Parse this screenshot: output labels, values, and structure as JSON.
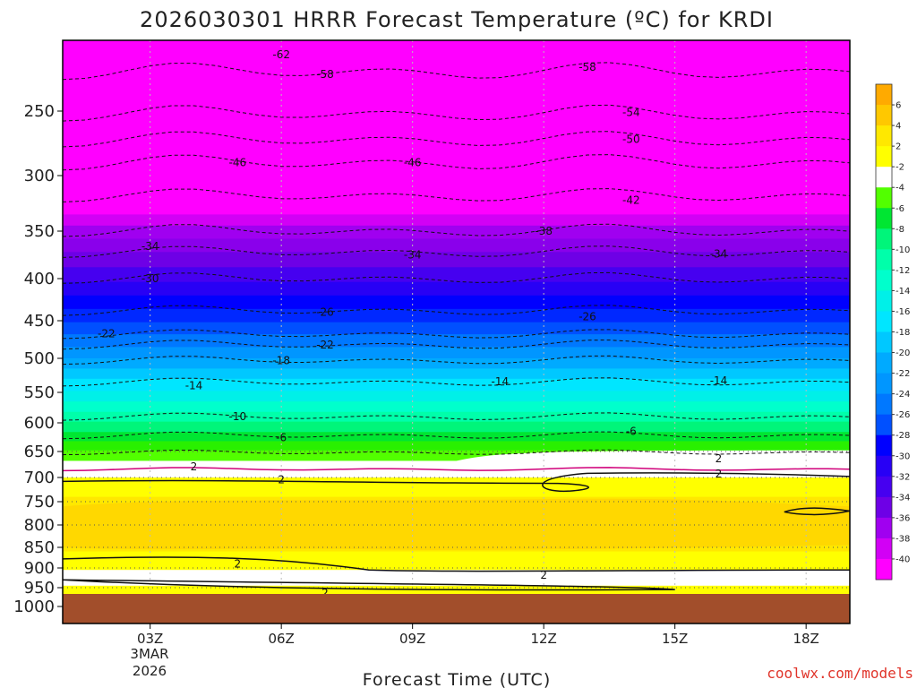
{
  "title": "2026030301 HRRR Forecast Temperature (ºC) for KRDI",
  "xlabel": "Forecast Time (UTC)",
  "credit": "coolwx.com/models",
  "chart_data": {
    "type": "heatmap",
    "title": "2026030301 HRRR Forecast Temperature (ºC) for KRDI",
    "xlabel": "Forecast Time (UTC)",
    "ylabel": "",
    "x_ticks": [
      "03Z",
      "06Z",
      "09Z",
      "12Z",
      "15Z",
      "18Z"
    ],
    "x_tick_hours": [
      3,
      6,
      9,
      12,
      15,
      18
    ],
    "x_date_label": [
      "3MAR",
      "2026"
    ],
    "xlim_hours": [
      1,
      19
    ],
    "y_ticks": [
      250,
      300,
      350,
      400,
      450,
      500,
      550,
      600,
      650,
      700,
      750,
      800,
      850,
      900,
      950,
      1000
    ],
    "ylim_hpa": [
      200,
      1050
    ],
    "y_scale": "log",
    "surface_pressure_hpa": 970,
    "colorbar_levels": [
      6,
      4,
      2,
      -2,
      -4,
      -6,
      -8,
      -10,
      -12,
      -14,
      -16,
      -18,
      -20,
      -22,
      -24,
      -26,
      -28,
      -30,
      -32,
      -34,
      -36,
      -38,
      -40
    ],
    "colorbar_colors": [
      "#ffaa00",
      "#ffc800",
      "#ffe800",
      "#ffff00",
      "#ffffff",
      "#52ff00",
      "#00e632",
      "#00f57a",
      "#00ffaa",
      "#00ffcc",
      "#00f0e8",
      "#00e6ff",
      "#00c8ff",
      "#00aaff",
      "#0096ff",
      "#0078ff",
      "#0050ff",
      "#0000ff",
      "#2800f5",
      "#4600f0",
      "#6e00e6",
      "#a000f0",
      "#d200f5",
      "#ff00ff"
    ],
    "contours": [
      {
        "label": "-62",
        "hour": 6,
        "p": 210
      },
      {
        "label": "-58",
        "hour": 7,
        "p": 224
      },
      {
        "label": "-58",
        "hour": 13,
        "p": 219
      },
      {
        "label": "-54",
        "hour": 14,
        "p": 251
      },
      {
        "label": "-50",
        "hour": 14,
        "p": 272
      },
      {
        "label": "-46",
        "hour": 5,
        "p": 290
      },
      {
        "label": "-46",
        "hour": 9,
        "p": 290
      },
      {
        "label": "-42",
        "hour": 14,
        "p": 322
      },
      {
        "label": "-38",
        "hour": 12,
        "p": 350
      },
      {
        "label": "-34",
        "hour": 3,
        "p": 366
      },
      {
        "label": "-34",
        "hour": 9,
        "p": 375
      },
      {
        "label": "-34",
        "hour": 16,
        "p": 374
      },
      {
        "label": "-30",
        "hour": 3,
        "p": 400
      },
      {
        "label": "-26",
        "hour": 7,
        "p": 440
      },
      {
        "label": "-26",
        "hour": 13,
        "p": 445
      },
      {
        "label": "-22",
        "hour": 2,
        "p": 467
      },
      {
        "label": "-22",
        "hour": 7,
        "p": 482
      },
      {
        "label": "-18",
        "hour": 6,
        "p": 503
      },
      {
        "label": "-14",
        "hour": 4,
        "p": 540
      },
      {
        "label": "-14",
        "hour": 11,
        "p": 534
      },
      {
        "label": "-14",
        "hour": 16,
        "p": 533
      },
      {
        "label": "-10",
        "hour": 5,
        "p": 590
      },
      {
        "label": "-6",
        "hour": 6,
        "p": 626
      },
      {
        "label": "-6",
        "hour": 14,
        "p": 615
      },
      {
        "label": "2",
        "hour": 4,
        "p": 679
      },
      {
        "label": "2",
        "hour": 16,
        "p": 664
      },
      {
        "label": "2",
        "hour": 16,
        "p": 693
      },
      {
        "label": "2",
        "hour": 6,
        "p": 705
      },
      {
        "label": "2",
        "hour": 5,
        "p": 890
      },
      {
        "label": "2",
        "hour": 12,
        "p": 918
      },
      {
        "label": "2",
        "hour": 7,
        "p": 964
      }
    ]
  }
}
